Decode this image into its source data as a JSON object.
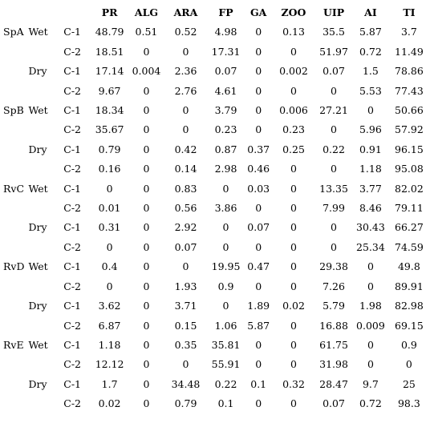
{
  "table": {
    "headers": [
      "",
      "",
      "",
      "PR",
      "ALG",
      "ARA",
      "FP",
      "GA",
      "ZOO",
      "UIP",
      "AI",
      "TI"
    ],
    "rows": [
      [
        "SpA",
        "Wet",
        "C-1",
        "48.79",
        "0.51",
        "0.52",
        "4.98",
        "0",
        "0.13",
        "35.5",
        "5.87",
        "3.7"
      ],
      [
        "",
        "",
        "C-2",
        "18.51",
        "0",
        "0",
        "17.31",
        "0",
        "0",
        "51.97",
        "0.72",
        "11.49"
      ],
      [
        "",
        "Dry",
        "C-1",
        "17.14",
        "0.004",
        "2.36",
        "0.07",
        "0",
        "0.002",
        "0.07",
        "1.5",
        "78.86"
      ],
      [
        "",
        "",
        "C-2",
        "9.67",
        "0",
        "2.76",
        "4.61",
        "0",
        "0",
        "0",
        "5.53",
        "77.43"
      ],
      [
        "SpB",
        "Wet",
        "C-1",
        "18.34",
        "0",
        "0",
        "3.79",
        "0",
        "0.006",
        "27.21",
        "0",
        "50.66"
      ],
      [
        "",
        "",
        "C-2",
        "35.67",
        "0",
        "0",
        "0.23",
        "0",
        "0.23",
        "0",
        "5.96",
        "57.92"
      ],
      [
        "",
        "Dry",
        "C-1",
        "0.79",
        "0",
        "0.42",
        "0.87",
        "0.37",
        "0.25",
        "0.22",
        "0.91",
        "96.15"
      ],
      [
        "",
        "",
        "C-2",
        "0.16",
        "0",
        "0.14",
        "2.98",
        "0.46",
        "0",
        "0",
        "1.18",
        "95.08"
      ],
      [
        "RvC",
        "Wet",
        "C-1",
        "0",
        "0",
        "0.83",
        "0",
        "0.03",
        "0",
        "13.35",
        "3.77",
        "82.02"
      ],
      [
        "",
        "",
        "C-2",
        "0.01",
        "0",
        "0.56",
        "3.86",
        "0",
        "0",
        "7.99",
        "8.46",
        "79.11"
      ],
      [
        "",
        "Dry",
        "C-1",
        "0.31",
        "0",
        "2.92",
        "0",
        "0.07",
        "0",
        "0",
        "30.43",
        "66.27"
      ],
      [
        "",
        "",
        "C-2",
        "0",
        "0",
        "0.07",
        "0",
        "0",
        "0",
        "0",
        "25.34",
        "74.59"
      ],
      [
        "RvD",
        "Wet",
        "C-1",
        "0.4",
        "0",
        "0",
        "19.95",
        "0.47",
        "0",
        "29.38",
        "0",
        "49.8"
      ],
      [
        "",
        "",
        "C-2",
        "0",
        "0",
        "1.93",
        "0.9",
        "0",
        "0",
        "7.26",
        "0",
        "89.91"
      ],
      [
        "",
        "Dry",
        "C-1",
        "3.62",
        "0",
        "3.71",
        "0",
        "1.89",
        "0.02",
        "5.79",
        "1.98",
        "82.98"
      ],
      [
        "",
        "",
        "C-2",
        "6.87",
        "0",
        "0.15",
        "1.06",
        "5.87",
        "0",
        "16.88",
        "0.009",
        "69.15"
      ],
      [
        "RvE",
        "Wet",
        "C-1",
        "1.18",
        "0",
        "0.35",
        "35.81",
        "0",
        "0",
        "61.75",
        "0",
        "0.9"
      ],
      [
        "",
        "",
        "C-2",
        "12.12",
        "0",
        "0",
        "55.91",
        "0",
        "0",
        "31.98",
        "0",
        "0"
      ],
      [
        "",
        "Dry",
        "C-1",
        "1.7",
        "0",
        "34.48",
        "0.22",
        "0.1",
        "0.32",
        "28.47",
        "9.7",
        "25"
      ],
      [
        "",
        "",
        "C-2",
        "0.02",
        "0",
        "0.79",
        "0.1",
        "0",
        "0",
        "0.07",
        "0.72",
        "98.3"
      ]
    ]
  }
}
